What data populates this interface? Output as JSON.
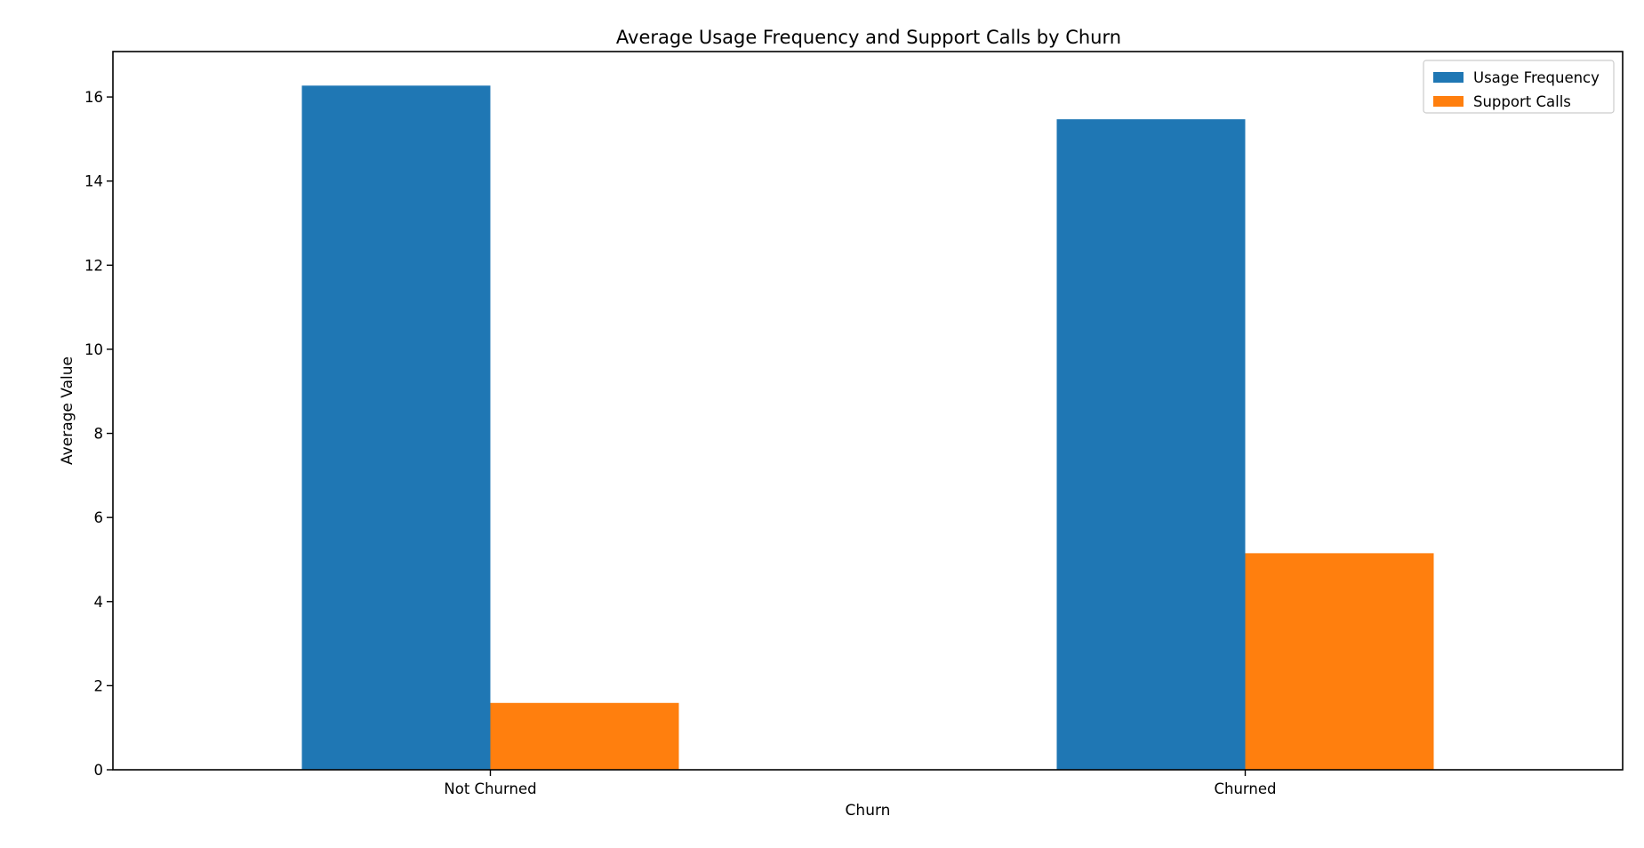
{
  "chart_data": {
    "type": "bar",
    "title": "Average Usage Frequency and Support Calls by Churn",
    "xlabel": "Churn",
    "ylabel": "Average Value",
    "categories": [
      "Not Churned",
      "Churned"
    ],
    "series": [
      {
        "name": "Usage Frequency",
        "color": "#1f77b4",
        "values": [
          16.27,
          15.47
        ]
      },
      {
        "name": "Support Calls",
        "color": "#ff7f0e",
        "values": [
          1.59,
          5.15
        ]
      }
    ],
    "yticks": [
      0,
      2,
      4,
      6,
      8,
      10,
      12,
      14,
      16
    ],
    "ylim": [
      0,
      17.08
    ],
    "grid": false,
    "legend_position": "top-right"
  }
}
